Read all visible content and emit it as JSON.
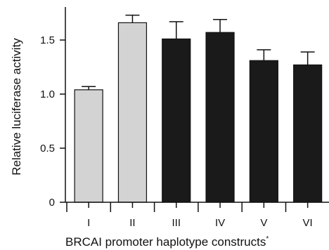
{
  "chart_data": {
    "type": "bar",
    "title": "",
    "xlabel": "BRCAI promoter haplotype constructs",
    "xlabel_suffix": "*",
    "ylabel": "Relative luciferase activity",
    "categories": [
      "I",
      "II",
      "III",
      "IV",
      "V",
      "VI"
    ],
    "values": [
      1.04,
      1.66,
      1.51,
      1.57,
      1.31,
      1.27
    ],
    "errors": [
      0.03,
      0.07,
      0.16,
      0.12,
      0.1,
      0.12
    ],
    "colors": [
      "#d3d3d3",
      "#d3d3d3",
      "#1a1a1a",
      "#1a1a1a",
      "#1a1a1a",
      "#1a1a1a"
    ],
    "ylim": [
      0,
      1.8
    ],
    "yticks": [
      0,
      0.5,
      1.0,
      1.5
    ],
    "ytick_labels": [
      "0",
      "0.5",
      "1.0",
      "1.5"
    ],
    "grid": false,
    "legend": "none"
  }
}
